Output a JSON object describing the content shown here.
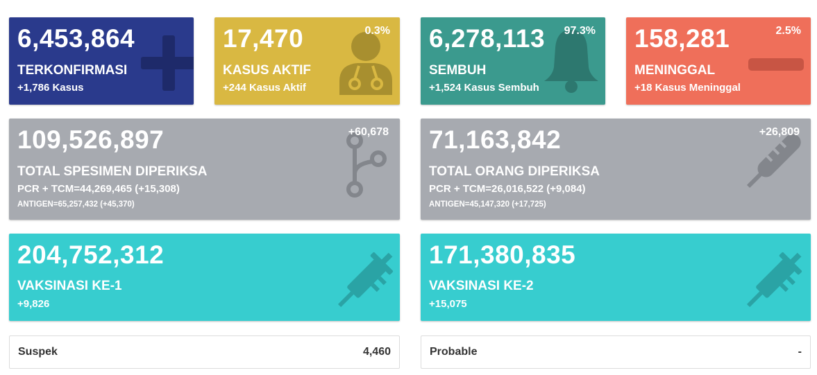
{
  "colors": {
    "confirmed": "#2a3a8c",
    "active": "#d9b842",
    "recovered": "#3b9a8e",
    "died": "#ef6f5a",
    "tests": "#a7aab0",
    "vaccine": "#37cdcf"
  },
  "confirmed": {
    "value": "6,453,864",
    "label": "TERKONFIRMASI",
    "delta": "+1,786 Kasus",
    "icon": "plus-icon"
  },
  "active": {
    "value": "17,470",
    "percent": "0.3%",
    "label": "KASUS AKTIF",
    "delta": "+244 Kasus Aktif",
    "icon": "doctor-icon"
  },
  "recovered": {
    "value": "6,278,113",
    "percent": "97.3%",
    "label": "SEMBUH",
    "delta": "+1,524 Kasus Sembuh",
    "icon": "bell-icon"
  },
  "died": {
    "value": "158,281",
    "percent": "2.5%",
    "label": "MENINGGAL",
    "delta": "+18 Kasus Meninggal",
    "icon": "minus-icon"
  },
  "specimens": {
    "value": "109,526,897",
    "delta": "+60,678",
    "label": "TOTAL SPESIMEN DIPERIKSA",
    "pcr": "PCR + TCM=44,269,465 (+15,308)",
    "antigen": "ANTIGEN=65,257,432 (+45,370)",
    "icon": "lab-branch-icon"
  },
  "people": {
    "value": "71,163,842",
    "delta": "+26,809",
    "label": "TOTAL ORANG DIPERIKSA",
    "pcr": "PCR + TCM=26,016,522 (+9,084)",
    "antigen": "ANTIGEN=45,147,320 (+17,725)",
    "icon": "thermometer-icon"
  },
  "vaccine1": {
    "value": "204,752,312",
    "label": "VAKSINASI KE-1",
    "delta": "+9,826",
    "icon": "syringe-icon"
  },
  "vaccine2": {
    "value": "171,380,835",
    "label": "VAKSINASI KE-2",
    "delta": "+15,075",
    "icon": "syringe-icon"
  },
  "suspek": {
    "label": "Suspek",
    "value": "4,460"
  },
  "probable": {
    "label": "Probable",
    "value": "-"
  }
}
